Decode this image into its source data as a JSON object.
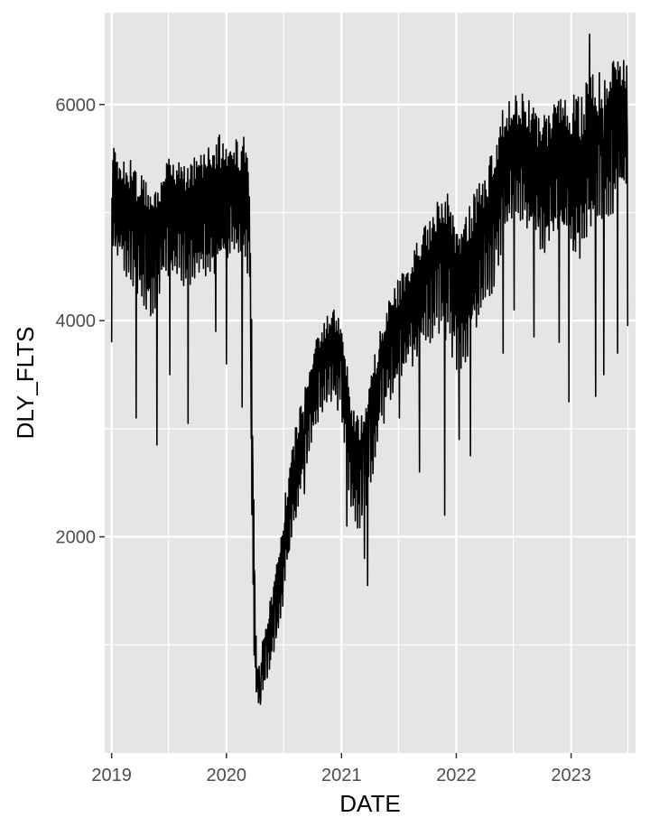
{
  "chart_data": {
    "type": "line",
    "title": "",
    "xlabel": "DATE",
    "ylabel": "DLY_FLTS",
    "x_ticks": [
      "2019",
      "2020",
      "2021",
      "2022",
      "2023"
    ],
    "y_ticks": [
      2000,
      4000,
      6000
    ],
    "xlim": [
      "2018-12-10",
      "2023-07-25"
    ],
    "ylim": [
      0,
      6850
    ],
    "grid": true,
    "legend": "none",
    "line_color": "#000000",
    "panel_color": "#e5e5e5",
    "series": [
      {
        "x": [
          "2019-01-01",
          "2019-02-01",
          "2019-03-01",
          "2019-04-01",
          "2019-05-01",
          "2019-06-01",
          "2019-07-01",
          "2019-08-01",
          "2019-09-01",
          "2019-10-01",
          "2019-11-01",
          "2019-12-01",
          "2020-01-01",
          "2020-02-01",
          "2020-03-01",
          "2020-03-15",
          "2020-03-25",
          "2020-04-05",
          "2020-04-15",
          "2020-05-01",
          "2020-06-01",
          "2020-07-01",
          "2020-08-01",
          "2020-09-01",
          "2020-10-01",
          "2020-11-01",
          "2020-12-01",
          "2021-01-01",
          "2021-02-01",
          "2021-03-01",
          "2021-04-01",
          "2021-05-01",
          "2021-06-01",
          "2021-07-01",
          "2021-08-01",
          "2021-09-01",
          "2021-10-01",
          "2021-11-01",
          "2021-12-01",
          "2022-01-01",
          "2022-02-01",
          "2022-03-01",
          "2022-04-01",
          "2022-05-01",
          "2022-06-01",
          "2022-07-01",
          "2022-08-01",
          "2022-09-01",
          "2022-10-01",
          "2022-11-01",
          "2022-12-01",
          "2023-01-01",
          "2023-02-01",
          "2023-03-01",
          "2023-04-01",
          "2023-05-01",
          "2023-06-01",
          "2023-07-01"
        ],
        "values": [
          5100,
          4950,
          4900,
          4750,
          4650,
          4750,
          4850,
          4950,
          4800,
          4900,
          4950,
          5000,
          5050,
          5050,
          5000,
          4800,
          2000,
          700,
          600,
          850,
          1200,
          1800,
          2400,
          2900,
          3300,
          3500,
          3650,
          3600,
          2700,
          2600,
          2900,
          3400,
          3700,
          3850,
          4000,
          4200,
          4300,
          4500,
          4500,
          4200,
          4250,
          4500,
          4700,
          4900,
          5300,
          5450,
          5450,
          5300,
          5200,
          5250,
          5350,
          5200,
          5200,
          5400,
          5500,
          5650,
          5700,
          5800
        ],
        "low": [
          4600,
          4400,
          4300,
          4100,
          4000,
          4200,
          4300,
          4400,
          4250,
          4350,
          4400,
          4450,
          4550,
          4550,
          4500,
          4300,
          900,
          500,
          450,
          600,
          850,
          1400,
          2000,
          2500,
          2900,
          3100,
          3150,
          3050,
          2200,
          2000,
          2400,
          2900,
          3200,
          3300,
          3500,
          3600,
          3700,
          3900,
          3800,
          3500,
          3600,
          3900,
          4100,
          4300,
          4700,
          4850,
          4900,
          4700,
          4600,
          4650,
          4700,
          4600,
          4550,
          4750,
          4800,
          4900,
          5000,
          5100
        ],
        "high": [
          5650,
          5550,
          5500,
          5350,
          5300,
          5400,
          5500,
          5600,
          5450,
          5550,
          5650,
          5750,
          5750,
          5750,
          5700,
          5400,
          3100,
          900,
          850,
          1150,
          1600,
          2300,
          2900,
          3400,
          3800,
          4000,
          4150,
          4100,
          3200,
          3100,
          3400,
          3950,
          4200,
          4400,
          4500,
          4800,
          4900,
          5100,
          5200,
          4950,
          5000,
          5200,
          5400,
          5600,
          6000,
          6100,
          6100,
          6000,
          5900,
          6000,
          6200,
          6200,
          6100,
          6300,
          6300,
          6400,
          6450,
          6500
        ],
        "outliers": [
          [
            "2019-01-01",
            3800
          ],
          [
            "2019-03-20",
            3100
          ],
          [
            "2019-05-25",
            2850
          ],
          [
            "2019-07-05",
            3500
          ],
          [
            "2019-09-01",
            3050
          ],
          [
            "2019-11-28",
            3900
          ],
          [
            "2020-01-01",
            3600
          ],
          [
            "2020-02-20",
            3200
          ],
          [
            "2020-04-18",
            450
          ],
          [
            "2020-09-05",
            2400
          ],
          [
            "2021-01-18",
            2100
          ],
          [
            "2021-03-15",
            1800
          ],
          [
            "2021-03-25",
            1550
          ],
          [
            "2021-07-04",
            3100
          ],
          [
            "2021-09-06",
            2600
          ],
          [
            "2021-11-25",
            2200
          ],
          [
            "2022-01-10",
            2900
          ],
          [
            "2022-02-15",
            2750
          ],
          [
            "2022-05-30",
            3700
          ],
          [
            "2022-07-04",
            4100
          ],
          [
            "2022-09-05",
            3850
          ],
          [
            "2022-11-24",
            3800
          ],
          [
            "2022-12-25",
            3250
          ],
          [
            "2023-03-20",
            3300
          ],
          [
            "2023-04-15",
            3500
          ],
          [
            "2023-05-29",
            3700
          ],
          [
            "2023-07-04",
            3950
          ],
          [
            "2023-03-01",
            6650
          ]
        ]
      }
    ]
  }
}
